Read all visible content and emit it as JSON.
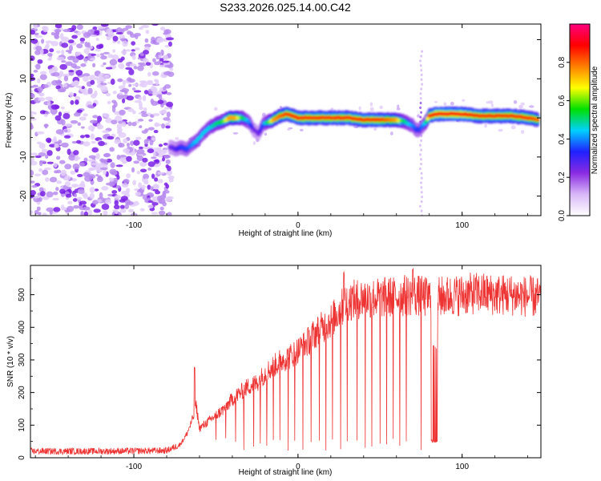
{
  "figure_title": "S233.2026.025.14.00.C42",
  "chart_data": [
    {
      "type": "heatmap",
      "title": "S233.2026.025.14.00.C42",
      "xlabel": "Height of straight line (km)",
      "ylabel": "Frequency (Hz)",
      "xlim": [
        -163,
        148
      ],
      "ylim": [
        -25,
        24
      ],
      "x_ticks": [
        -100,
        0,
        100
      ],
      "x_tick_labels": [
        "-100",
        "0",
        "100"
      ],
      "y_ticks": [
        -20,
        -10,
        0,
        10,
        20
      ],
      "y_tick_labels": [
        "-20",
        "-10",
        "0",
        "10",
        "20"
      ],
      "noise_region_x": [
        -163,
        -77
      ],
      "ridge": {
        "x": [
          -78,
          -74,
          -71,
          -68,
          -65,
          -62,
          -58,
          -54,
          -50,
          -46,
          -42,
          -38,
          -34,
          -30,
          -27,
          -24,
          -21,
          -18,
          -15,
          -11,
          -7,
          -3,
          0,
          10,
          20,
          30,
          40,
          50,
          60,
          65,
          70,
          72,
          74,
          76,
          78,
          80,
          84,
          90,
          100,
          110,
          120,
          130,
          140,
          147
        ],
        "freq": [
          -7.5,
          -8,
          -7.5,
          -8,
          -7,
          -6,
          -4,
          -2.5,
          -1.5,
          -1,
          0,
          0,
          0,
          -1,
          -3,
          -4,
          -1.5,
          -1,
          -0.5,
          0.5,
          1,
          0.5,
          0,
          0,
          0,
          0,
          -0.5,
          -0.5,
          -0.5,
          -1,
          -2,
          -3,
          -3,
          -2,
          -1,
          0.5,
          1,
          1,
          1,
          0.5,
          0.5,
          0.5,
          0,
          -0.5
        ],
        "amp": [
          0.25,
          0.3,
          0.35,
          0.35,
          0.4,
          0.45,
          0.45,
          0.45,
          0.5,
          0.55,
          0.75,
          0.75,
          0.55,
          0.4,
          0.25,
          0.25,
          0.4,
          0.55,
          0.75,
          0.8,
          0.85,
          0.85,
          0.85,
          0.85,
          0.85,
          0.85,
          0.85,
          0.85,
          0.75,
          0.5,
          0.4,
          0.35,
          0.35,
          0.4,
          0.5,
          0.85,
          0.9,
          0.9,
          0.9,
          0.85,
          0.85,
          0.85,
          0.85,
          0.8
        ]
      },
      "spike_x": 75,
      "colorbar": {
        "label": "Normalized spectral amplitude",
        "range": [
          0,
          1
        ],
        "ticks": [
          0.0,
          0.2,
          0.4,
          0.6,
          0.8
        ],
        "tick_labels": [
          "0.0",
          "0.2",
          "0.4",
          "0.6",
          "0.8"
        ],
        "colors": [
          "#ffffff",
          "#d8b8f8",
          "#8a2be2",
          "#2020ff",
          "#00d0ff",
          "#00e000",
          "#ffff00",
          "#ff8000",
          "#ff0000",
          "#ff0080"
        ]
      }
    },
    {
      "type": "line",
      "xlabel": "Height of straight line (km)",
      "ylabel": "SNR (10 * v/v)",
      "xlim": [
        -163,
        148
      ],
      "ylim": [
        0,
        590
      ],
      "x_ticks": [
        -100,
        0,
        100
      ],
      "x_tick_labels": [
        "-100",
        "0",
        "100"
      ],
      "y_ticks": [
        0,
        100,
        200,
        300,
        400,
        500
      ],
      "y_tick_labels": [
        "0",
        "100",
        "200",
        "300",
        "400",
        "500"
      ],
      "color": "#ee3333",
      "envelope": {
        "x": [
          -163,
          -120,
          -80,
          -72,
          -68,
          -64,
          -62,
          -60,
          -55,
          -50,
          -45,
          -40,
          -35,
          -30,
          -25,
          -20,
          -15,
          -10,
          -5,
          0,
          5,
          10,
          15,
          20,
          25,
          30,
          40,
          50,
          60,
          70,
          80,
          90,
          100,
          110,
          120,
          130,
          148
        ],
        "snr": [
          20,
          20,
          22,
          40,
          70,
          120,
          160,
          90,
          110,
          130,
          150,
          180,
          200,
          220,
          230,
          260,
          280,
          300,
          310,
          330,
          350,
          380,
          400,
          420,
          450,
          480,
          490,
          490,
          495,
          500,
          490,
          495,
          500,
          505,
          500,
          500,
          490
        ]
      },
      "spikes_up": [
        {
          "x": -63,
          "snr": 280
        },
        {
          "x": 28,
          "snr": 570
        },
        {
          "x": 70,
          "snr": 580
        }
      ],
      "dropouts_x": [
        -50,
        -44,
        -38,
        -33,
        -27,
        -23,
        -19,
        -15,
        -11,
        -6,
        -2,
        3,
        8,
        13,
        17,
        21,
        26,
        30,
        36,
        41,
        45,
        50,
        54,
        58,
        62,
        66,
        70,
        75
      ],
      "low_block_x": [
        81,
        85
      ],
      "low_block_snr": 50
    }
  ]
}
